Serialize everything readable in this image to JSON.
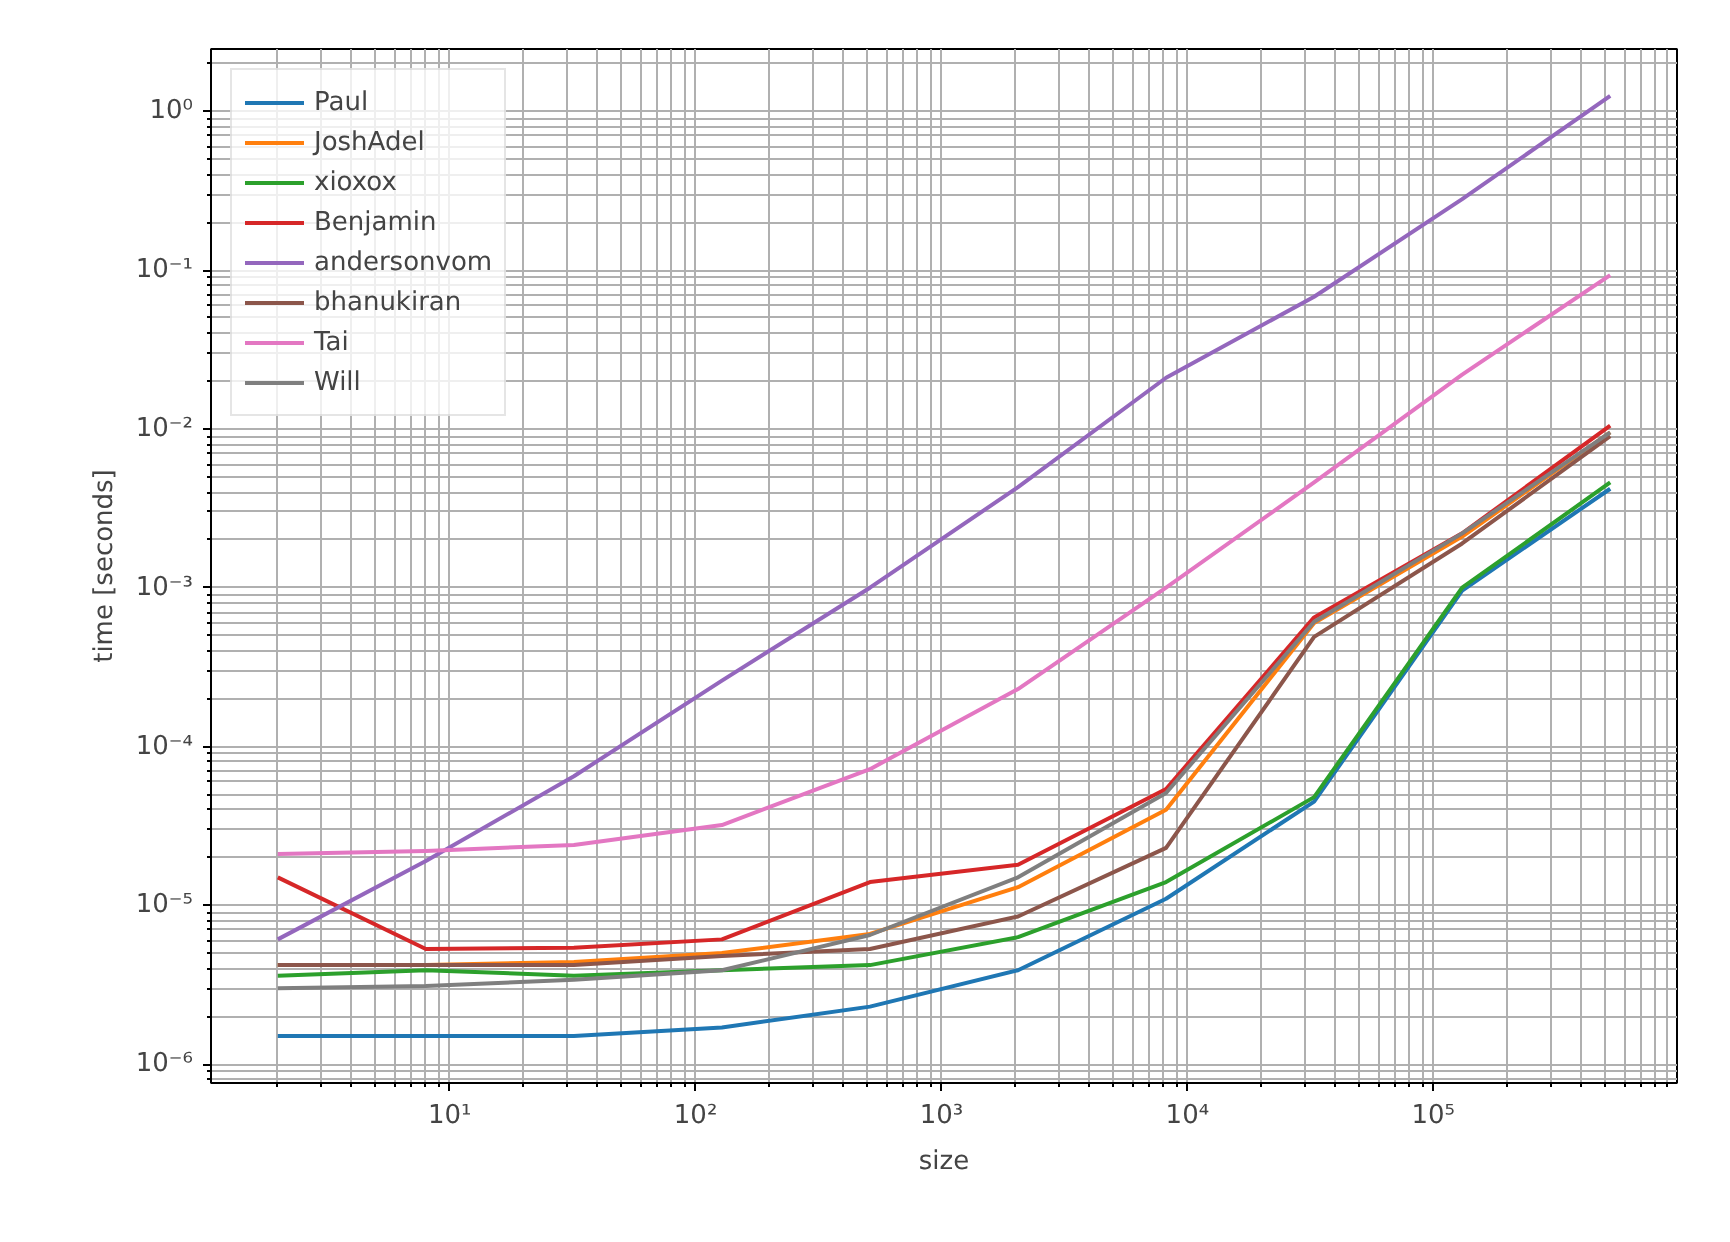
{
  "chart_data": {
    "type": "line",
    "xlabel": "size",
    "ylabel": "time [seconds]",
    "log": "xy",
    "grid": true,
    "legend": "top left",
    "x": [
      2,
      8,
      32,
      128,
      512,
      2048,
      8192,
      32768,
      131072,
      524288
    ],
    "xlim": [
      1.07,
      980000
    ],
    "ylim": [
      7.6e-07,
      2.47
    ],
    "xticks": [
      {
        "value": 10,
        "label": "10¹"
      },
      {
        "value": 100,
        "label": "10²"
      },
      {
        "value": 1000,
        "label": "10³"
      },
      {
        "value": 10000,
        "label": "10⁴"
      },
      {
        "value": 100000,
        "label": "10⁵"
      }
    ],
    "yticks": [
      {
        "value": 1e-06,
        "label": "10⁻⁶"
      },
      {
        "value": 1e-05,
        "label": "10⁻⁵"
      },
      {
        "value": 0.0001,
        "label": "10⁻⁴"
      },
      {
        "value": 0.001,
        "label": "10⁻³"
      },
      {
        "value": 0.01,
        "label": "10⁻²"
      },
      {
        "value": 0.1,
        "label": "10⁻¹"
      },
      {
        "value": 1,
        "label": "10⁰"
      }
    ],
    "series": [
      {
        "name": "Paul",
        "color": "#1f77b4",
        "values": [
          1.5e-06,
          1.5e-06,
          1.5e-06,
          1.7e-06,
          2.3e-06,
          3.9e-06,
          1.1e-05,
          4.5e-05,
          0.00096,
          0.0042
        ]
      },
      {
        "name": "JoshAdel",
        "color": "#ff7f0e",
        "values": [
          4.2e-06,
          4.2e-06,
          4.4e-06,
          5e-06,
          6.6e-06,
          1.3e-05,
          4e-05,
          0.0006,
          0.0021,
          0.0095
        ]
      },
      {
        "name": "xioxox",
        "color": "#2ca02c",
        "values": [
          3.6e-06,
          3.9e-06,
          3.6e-06,
          3.9e-06,
          4.2e-06,
          6.3e-06,
          1.4e-05,
          4.8e-05,
          0.001,
          0.0046
        ]
      },
      {
        "name": "Benjamin",
        "color": "#d62728",
        "values": [
          1.5e-05,
          5.3e-06,
          5.4e-06,
          6.1e-06,
          1.4e-05,
          1.8e-05,
          5.4e-05,
          0.00065,
          0.0022,
          0.0105
        ]
      },
      {
        "name": "andersonvom",
        "color": "#9467bd",
        "values": [
          6.1e-06,
          1.9e-05,
          6.5e-05,
          0.00026,
          0.001,
          0.0043,
          0.021,
          0.068,
          0.28,
          1.25
        ]
      },
      {
        "name": "bhanukiran",
        "color": "#8c564b",
        "values": [
          4.2e-06,
          4.2e-06,
          4.2e-06,
          4.8e-06,
          5.3e-06,
          8.5e-06,
          2.3e-05,
          0.00049,
          0.0019,
          0.009
        ]
      },
      {
        "name": "Tai",
        "color": "#e377c2",
        "values": [
          2.1e-05,
          2.2e-05,
          2.4e-05,
          3.2e-05,
          7.2e-05,
          0.00023,
          0.001,
          0.0046,
          0.022,
          0.093
        ]
      },
      {
        "name": "Will",
        "color": "#7f7f7f",
        "values": [
          3e-06,
          3.1e-06,
          3.4e-06,
          3.9e-06,
          6.5e-06,
          1.5e-05,
          5.1e-05,
          0.00061,
          0.0022,
          0.0095
        ]
      }
    ]
  }
}
